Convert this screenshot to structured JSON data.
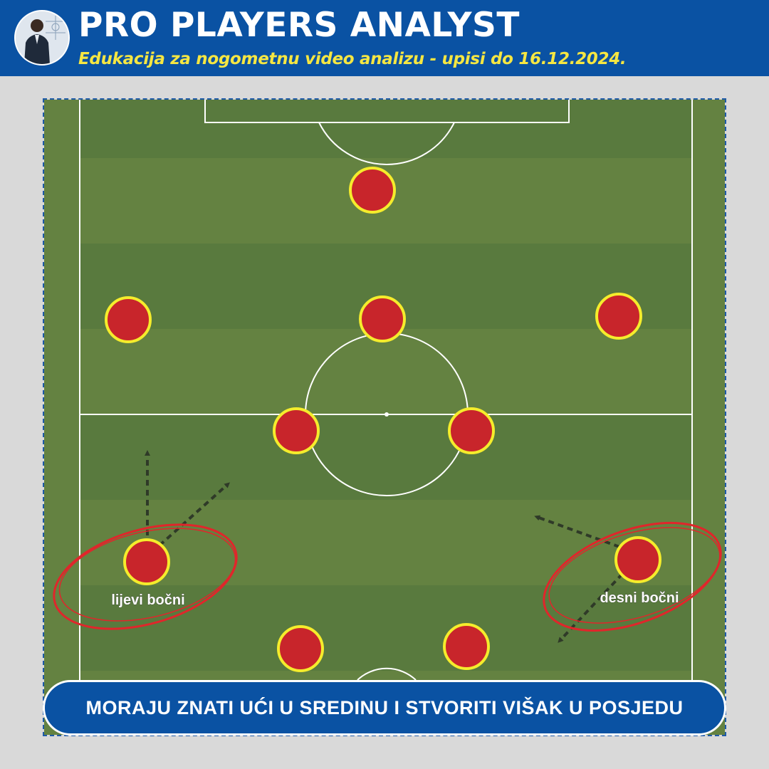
{
  "header": {
    "title": "PRO PLAYERS ANALYST",
    "subtitle": "Edukacija za nogometnu video analizu - upisi do 16.12.2024.",
    "avatar_icon": "analyst-avatar-icon"
  },
  "pitch": {
    "stripe_dark": "#597a3e",
    "stripe_light": "#648241",
    "line_color": "#ffffff",
    "player_fill": "#c8252b",
    "player_ring": "#f5ec2c"
  },
  "players": {
    "fb_left_label": "lijevi bočni",
    "fb_right_label": "desni bočni"
  },
  "banner": {
    "text": "MORAJU ZNATI UĆI U SREDINU I STVORITI VIŠAK U POSJEDU"
  }
}
